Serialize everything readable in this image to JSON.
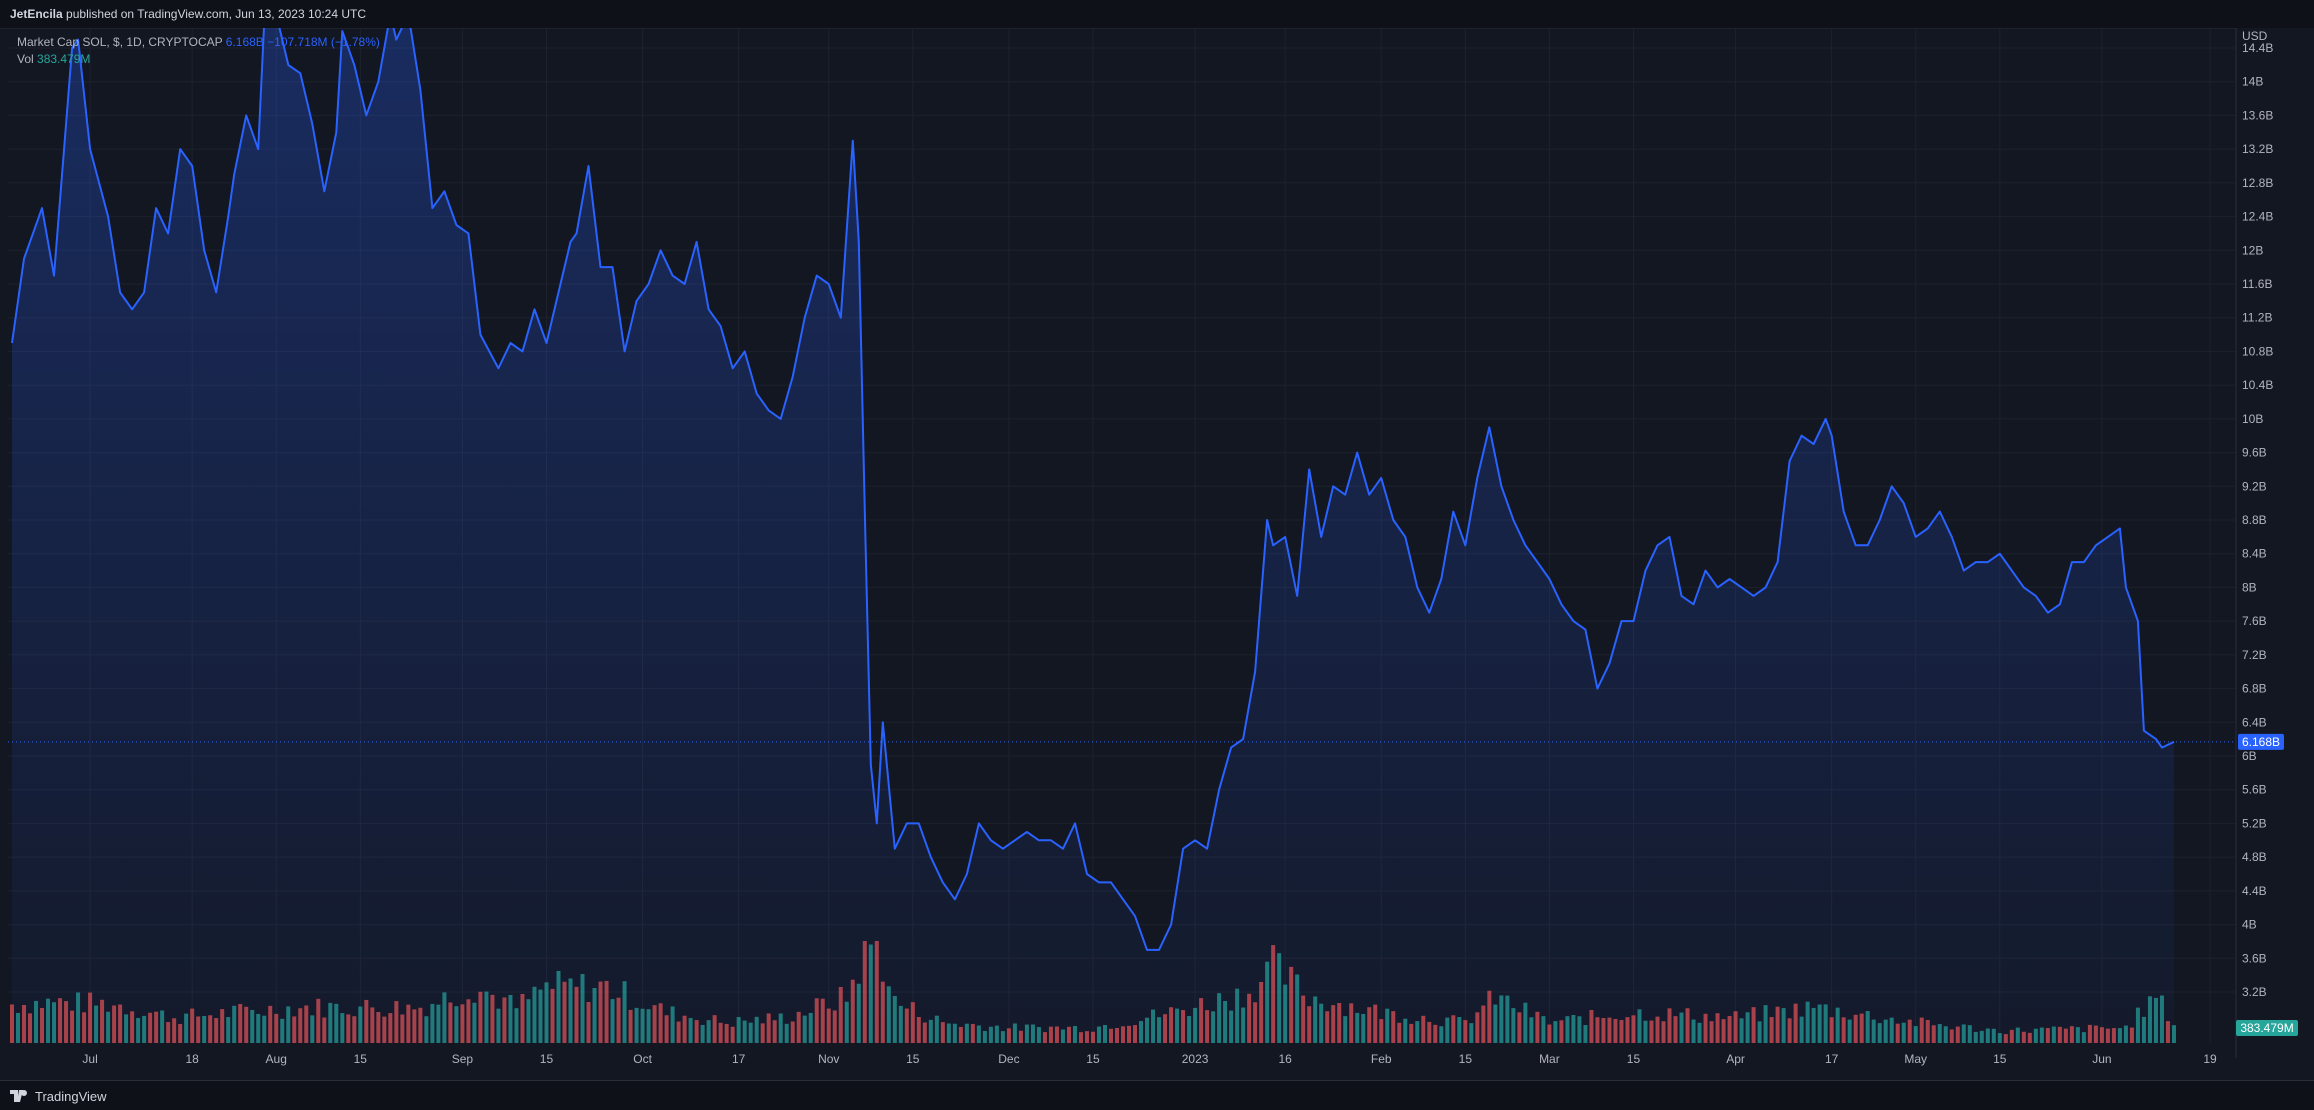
{
  "publisher": {
    "author": "JetEncila",
    "text": "published on TradingView.com, Jun 13, 2023 10:24 UTC"
  },
  "legend": {
    "symbol": "Market Cap SOL, $, 1D, CRYPTOCAP",
    "price": "6.168B",
    "change": "−107.718M (−1.78%)",
    "vol_label": "Vol",
    "vol_value": "383.479M"
  },
  "brand": {
    "name": "TradingView"
  },
  "axis_labels": {
    "currency": "USD",
    "last_price": "6.168B",
    "last_volume": "383.479M"
  },
  "colors": {
    "line": "#2962ff",
    "up_volume": "#26a69a",
    "down_volume": "#ef5350",
    "background": "#131722"
  },
  "chart_data": {
    "type": "area",
    "title": "Market Cap SOL, $, 1D, CRYPTOCAP",
    "ylabel": "USD",
    "ylim": [
      3.2,
      14.8
    ],
    "y_ticks": [
      "3.2B",
      "3.6B",
      "4B",
      "4.4B",
      "4.8B",
      "5.2B",
      "5.6B",
      "6B",
      "6.4B",
      "6.8B",
      "7.2B",
      "7.6B",
      "8B",
      "8.4B",
      "8.8B",
      "9.2B",
      "9.6B",
      "10B",
      "10.4B",
      "10.8B",
      "11.2B",
      "11.6B",
      "12B",
      "12.4B",
      "12.8B",
      "13.2B",
      "13.6B",
      "14B",
      "14.4B"
    ],
    "x_ticks": [
      {
        "label": "Jul",
        "date": "2022-07-01"
      },
      {
        "label": "18",
        "date": "2022-07-18"
      },
      {
        "label": "Aug",
        "date": "2022-08-01"
      },
      {
        "label": "15",
        "date": "2022-08-15"
      },
      {
        "label": "Sep",
        "date": "2022-09-01"
      },
      {
        "label": "15",
        "date": "2022-09-15"
      },
      {
        "label": "Oct",
        "date": "2022-10-01"
      },
      {
        "label": "17",
        "date": "2022-10-17"
      },
      {
        "label": "Nov",
        "date": "2022-11-01"
      },
      {
        "label": "15",
        "date": "2022-11-15"
      },
      {
        "label": "Dec",
        "date": "2022-12-01"
      },
      {
        "label": "15",
        "date": "2022-12-15"
      },
      {
        "label": "2023",
        "date": "2023-01-01"
      },
      {
        "label": "16",
        "date": "2023-01-16"
      },
      {
        "label": "Feb",
        "date": "2023-02-01"
      },
      {
        "label": "15",
        "date": "2023-02-15"
      },
      {
        "label": "Mar",
        "date": "2023-03-01"
      },
      {
        "label": "15",
        "date": "2023-03-15"
      },
      {
        "label": "Apr",
        "date": "2023-04-01"
      },
      {
        "label": "17",
        "date": "2023-04-17"
      },
      {
        "label": "May",
        "date": "2023-05-01"
      },
      {
        "label": "15",
        "date": "2023-05-15"
      },
      {
        "label": "Jun",
        "date": "2023-06-01"
      },
      {
        "label": "19",
        "date": "2023-06-19"
      }
    ],
    "series": [
      {
        "name": "Market Cap (B)",
        "points": [
          [
            "2022-06-18",
            10.9
          ],
          [
            "2022-06-20",
            11.9
          ],
          [
            "2022-06-23",
            12.5
          ],
          [
            "2022-06-25",
            11.7
          ],
          [
            "2022-06-28",
            14.4
          ],
          [
            "2022-06-29",
            14.5
          ],
          [
            "2022-07-01",
            13.2
          ],
          [
            "2022-07-04",
            12.4
          ],
          [
            "2022-07-06",
            11.5
          ],
          [
            "2022-07-08",
            11.3
          ],
          [
            "2022-07-10",
            11.5
          ],
          [
            "2022-07-12",
            12.5
          ],
          [
            "2022-07-14",
            12.2
          ],
          [
            "2022-07-16",
            13.2
          ],
          [
            "2022-07-18",
            13.0
          ],
          [
            "2022-07-20",
            12.0
          ],
          [
            "2022-07-22",
            11.5
          ],
          [
            "2022-07-24",
            12.4
          ],
          [
            "2022-07-25",
            12.9
          ],
          [
            "2022-07-27",
            13.6
          ],
          [
            "2022-07-29",
            13.2
          ],
          [
            "2022-07-30",
            14.7
          ],
          [
            "2022-08-01",
            14.8
          ],
          [
            "2022-08-03",
            14.2
          ],
          [
            "2022-08-05",
            14.1
          ],
          [
            "2022-08-07",
            13.5
          ],
          [
            "2022-08-09",
            12.7
          ],
          [
            "2022-08-11",
            13.4
          ],
          [
            "2022-08-12",
            14.6
          ],
          [
            "2022-08-14",
            14.2
          ],
          [
            "2022-08-16",
            13.6
          ],
          [
            "2022-08-18",
            14.0
          ],
          [
            "2022-08-20",
            14.8
          ],
          [
            "2022-08-21",
            14.5
          ],
          [
            "2022-08-23",
            14.8
          ],
          [
            "2022-08-25",
            13.9
          ],
          [
            "2022-08-27",
            12.5
          ],
          [
            "2022-08-29",
            12.7
          ],
          [
            "2022-08-31",
            12.3
          ],
          [
            "2022-09-02",
            12.2
          ],
          [
            "2022-09-04",
            11.0
          ],
          [
            "2022-09-07",
            10.6
          ],
          [
            "2022-09-09",
            10.9
          ],
          [
            "2022-09-11",
            10.8
          ],
          [
            "2022-09-13",
            11.3
          ],
          [
            "2022-09-15",
            10.9
          ],
          [
            "2022-09-17",
            11.5
          ],
          [
            "2022-09-19",
            12.1
          ],
          [
            "2022-09-20",
            12.2
          ],
          [
            "2022-09-22",
            13.0
          ],
          [
            "2022-09-24",
            11.8
          ],
          [
            "2022-09-26",
            11.8
          ],
          [
            "2022-09-28",
            10.8
          ],
          [
            "2022-09-30",
            11.4
          ],
          [
            "2022-10-02",
            11.6
          ],
          [
            "2022-10-04",
            12.0
          ],
          [
            "2022-10-06",
            11.7
          ],
          [
            "2022-10-08",
            11.6
          ],
          [
            "2022-10-10",
            12.1
          ],
          [
            "2022-10-12",
            11.3
          ],
          [
            "2022-10-14",
            11.1
          ],
          [
            "2022-10-16",
            10.6
          ],
          [
            "2022-10-18",
            10.8
          ],
          [
            "2022-10-20",
            10.3
          ],
          [
            "2022-10-22",
            10.1
          ],
          [
            "2022-10-24",
            10.0
          ],
          [
            "2022-10-26",
            10.5
          ],
          [
            "2022-10-28",
            11.2
          ],
          [
            "2022-10-30",
            11.7
          ],
          [
            "2022-11-01",
            11.6
          ],
          [
            "2022-11-03",
            11.2
          ],
          [
            "2022-11-05",
            13.3
          ],
          [
            "2022-11-06",
            12.1
          ],
          [
            "2022-11-07",
            8.9
          ],
          [
            "2022-11-08",
            5.9
          ],
          [
            "2022-11-09",
            5.2
          ],
          [
            "2022-11-10",
            6.4
          ],
          [
            "2022-11-12",
            4.9
          ],
          [
            "2022-11-14",
            5.2
          ],
          [
            "2022-11-16",
            5.2
          ],
          [
            "2022-11-18",
            4.8
          ],
          [
            "2022-11-20",
            4.5
          ],
          [
            "2022-11-22",
            4.3
          ],
          [
            "2022-11-24",
            4.6
          ],
          [
            "2022-11-26",
            5.2
          ],
          [
            "2022-11-28",
            5.0
          ],
          [
            "2022-11-30",
            4.9
          ],
          [
            "2022-12-02",
            5.0
          ],
          [
            "2022-12-04",
            5.1
          ],
          [
            "2022-12-06",
            5.0
          ],
          [
            "2022-12-08",
            5.0
          ],
          [
            "2022-12-10",
            4.9
          ],
          [
            "2022-12-12",
            5.2
          ],
          [
            "2022-12-14",
            4.6
          ],
          [
            "2022-12-16",
            4.5
          ],
          [
            "2022-12-18",
            4.5
          ],
          [
            "2022-12-20",
            4.3
          ],
          [
            "2022-12-22",
            4.1
          ],
          [
            "2022-12-24",
            3.7
          ],
          [
            "2022-12-26",
            3.7
          ],
          [
            "2022-12-28",
            4.0
          ],
          [
            "2022-12-30",
            4.9
          ],
          [
            "2023-01-01",
            5.0
          ],
          [
            "2023-01-03",
            4.9
          ],
          [
            "2023-01-05",
            5.6
          ],
          [
            "2023-01-07",
            6.1
          ],
          [
            "2023-01-09",
            6.2
          ],
          [
            "2023-01-11",
            7.0
          ],
          [
            "2023-01-13",
            8.8
          ],
          [
            "2023-01-14",
            8.5
          ],
          [
            "2023-01-16",
            8.6
          ],
          [
            "2023-01-18",
            7.9
          ],
          [
            "2023-01-20",
            9.4
          ],
          [
            "2023-01-22",
            8.6
          ],
          [
            "2023-01-24",
            9.2
          ],
          [
            "2023-01-26",
            9.1
          ],
          [
            "2023-01-28",
            9.6
          ],
          [
            "2023-01-30",
            9.1
          ],
          [
            "2023-02-01",
            9.3
          ],
          [
            "2023-02-03",
            8.8
          ],
          [
            "2023-02-05",
            8.6
          ],
          [
            "2023-02-07",
            8.0
          ],
          [
            "2023-02-09",
            7.7
          ],
          [
            "2023-02-11",
            8.1
          ],
          [
            "2023-02-13",
            8.9
          ],
          [
            "2023-02-15",
            8.5
          ],
          [
            "2023-02-17",
            9.3
          ],
          [
            "2023-02-19",
            9.9
          ],
          [
            "2023-02-21",
            9.2
          ],
          [
            "2023-02-23",
            8.8
          ],
          [
            "2023-02-25",
            8.5
          ],
          [
            "2023-02-27",
            8.3
          ],
          [
            "2023-03-01",
            8.1
          ],
          [
            "2023-03-03",
            7.8
          ],
          [
            "2023-03-05",
            7.6
          ],
          [
            "2023-03-07",
            7.5
          ],
          [
            "2023-03-09",
            6.8
          ],
          [
            "2023-03-11",
            7.1
          ],
          [
            "2023-03-13",
            7.6
          ],
          [
            "2023-03-15",
            7.6
          ],
          [
            "2023-03-17",
            8.2
          ],
          [
            "2023-03-19",
            8.5
          ],
          [
            "2023-03-21",
            8.6
          ],
          [
            "2023-03-23",
            7.9
          ],
          [
            "2023-03-25",
            7.8
          ],
          [
            "2023-03-27",
            8.2
          ],
          [
            "2023-03-29",
            8.0
          ],
          [
            "2023-03-31",
            8.1
          ],
          [
            "2023-04-02",
            8.0
          ],
          [
            "2023-04-04",
            7.9
          ],
          [
            "2023-04-06",
            8.0
          ],
          [
            "2023-04-08",
            8.3
          ],
          [
            "2023-04-10",
            9.5
          ],
          [
            "2023-04-12",
            9.8
          ],
          [
            "2023-04-14",
            9.7
          ],
          [
            "2023-04-16",
            10.0
          ],
          [
            "2023-04-17",
            9.8
          ],
          [
            "2023-04-19",
            8.9
          ],
          [
            "2023-04-21",
            8.5
          ],
          [
            "2023-04-23",
            8.5
          ],
          [
            "2023-04-25",
            8.8
          ],
          [
            "2023-04-27",
            9.2
          ],
          [
            "2023-04-29",
            9.0
          ],
          [
            "2023-05-01",
            8.6
          ],
          [
            "2023-05-03",
            8.7
          ],
          [
            "2023-05-05",
            8.9
          ],
          [
            "2023-05-07",
            8.6
          ],
          [
            "2023-05-09",
            8.2
          ],
          [
            "2023-05-11",
            8.3
          ],
          [
            "2023-05-13",
            8.3
          ],
          [
            "2023-05-15",
            8.4
          ],
          [
            "2023-05-17",
            8.2
          ],
          [
            "2023-05-19",
            8.0
          ],
          [
            "2023-05-21",
            7.9
          ],
          [
            "2023-05-23",
            7.7
          ],
          [
            "2023-05-25",
            7.8
          ],
          [
            "2023-05-27",
            8.3
          ],
          [
            "2023-05-29",
            8.3
          ],
          [
            "2023-05-31",
            8.5
          ],
          [
            "2023-06-02",
            8.6
          ],
          [
            "2023-06-04",
            8.7
          ],
          [
            "2023-06-05",
            8.0
          ],
          [
            "2023-06-07",
            7.6
          ],
          [
            "2023-06-08",
            6.3
          ],
          [
            "2023-06-10",
            6.2
          ],
          [
            "2023-06-11",
            6.1
          ],
          [
            "2023-06-13",
            6.168
          ]
        ]
      },
      {
        "name": "Vol",
        "description": "daily volume bars (relative height 0-1)",
        "bars": [
          [
            "2022-06-18",
            0.38,
            "up"
          ],
          [
            "2022-06-25",
            0.4,
            "down"
          ],
          [
            "2022-07-05",
            0.38,
            "down"
          ],
          [
            "2022-07-15",
            0.25,
            "down"
          ],
          [
            "2022-07-25",
            0.3,
            "up"
          ],
          [
            "2022-08-05",
            0.35,
            "down"
          ],
          [
            "2022-08-15",
            0.35,
            "down"
          ],
          [
            "2022-08-25",
            0.35,
            "down"
          ],
          [
            "2022-09-03",
            0.55,
            "down"
          ],
          [
            "2022-09-10",
            0.35,
            "down"
          ],
          [
            "2022-09-15",
            0.55,
            "down"
          ],
          [
            "2022-09-25",
            0.55,
            "down"
          ],
          [
            "2022-10-05",
            0.3,
            "down"
          ],
          [
            "2022-10-15",
            0.2,
            "up"
          ],
          [
            "2022-10-25",
            0.25,
            "up"
          ],
          [
            "2022-11-04",
            0.45,
            "up"
          ],
          [
            "2022-11-07",
            0.9,
            "down"
          ],
          [
            "2022-11-09",
            1.0,
            "down"
          ],
          [
            "2022-11-12",
            0.4,
            "down"
          ],
          [
            "2022-11-20",
            0.2,
            "up"
          ],
          [
            "2022-12-01",
            0.15,
            "down"
          ],
          [
            "2022-12-15",
            0.15,
            "down"
          ],
          [
            "2022-12-28",
            0.3,
            "up"
          ],
          [
            "2023-01-10",
            0.5,
            "up"
          ],
          [
            "2023-01-14",
            0.75,
            "up"
          ],
          [
            "2023-01-20",
            0.45,
            "down"
          ],
          [
            "2023-02-01",
            0.3,
            "down"
          ],
          [
            "2023-02-15",
            0.2,
            "up"
          ],
          [
            "2023-02-20",
            0.45,
            "up"
          ],
          [
            "2023-03-01",
            0.2,
            "down"
          ],
          [
            "2023-03-15",
            0.3,
            "up"
          ],
          [
            "2023-04-01",
            0.25,
            "down"
          ],
          [
            "2023-04-14",
            0.35,
            "up"
          ],
          [
            "2023-05-01",
            0.2,
            "down"
          ],
          [
            "2023-05-15",
            0.12,
            "down"
          ],
          [
            "2023-06-05",
            0.15,
            "up"
          ],
          [
            "2023-06-10",
            0.45,
            "down"
          ],
          [
            "2023-06-13",
            0.2,
            "up"
          ]
        ]
      }
    ]
  }
}
